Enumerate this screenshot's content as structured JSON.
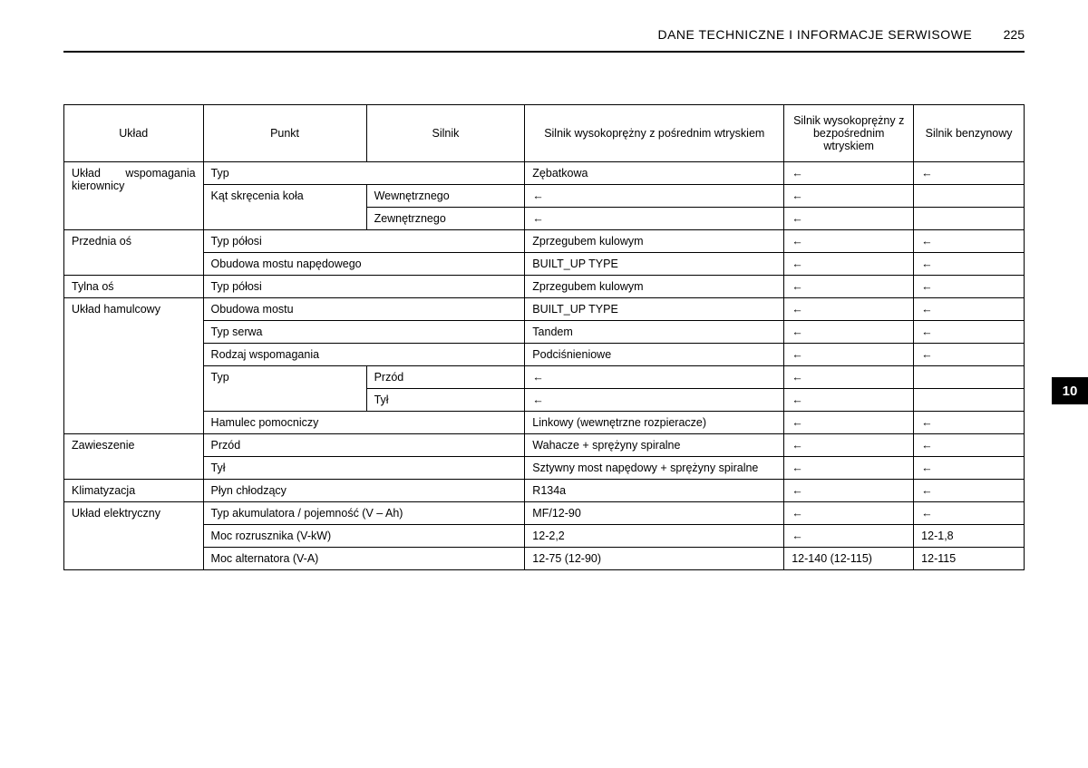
{
  "header": {
    "title": "DANE TECHNICZNE I INFORMACJE SERWISOWE",
    "page": "225"
  },
  "sideTab": "10",
  "arrow": "←",
  "columns": {
    "c1": "Układ",
    "c2": "Punkt",
    "c3": "Silnik",
    "c4": "Silnik wysokoprężny z pośrednim wtryskiem",
    "c5": "Silnik wysokoprężny z bezpośrednim wtryskiem",
    "c6": "Silnik benzynowy"
  },
  "groups": {
    "steering": {
      "label": "Układ wspomagania kierownicy",
      "rows": {
        "typ": {
          "p": "Typ",
          "v": "Zębatkowa"
        },
        "katWew": {
          "p": "Kąt skręcenia koła",
          "s": "Wewnętrznego"
        },
        "katZew": {
          "s": "Zewnętrznego"
        }
      }
    },
    "frontAxle": {
      "label": "Przednia oś",
      "rows": {
        "typPolosi": {
          "p": "Typ półosi",
          "v": "Zprzegubem kulowym"
        },
        "obudowa": {
          "p": "Obudowa mostu napędowego",
          "v": "BUILT_UP TYPE"
        }
      }
    },
    "rearAxle": {
      "label": "Tylna oś",
      "rows": {
        "typPolosi": {
          "p": "Typ półosi",
          "v": "Zprzegubem kulowym"
        }
      }
    },
    "brake": {
      "label": "Układ hamulcowy",
      "rows": {
        "obudowa": {
          "p": "Obudowa mostu",
          "v": "BUILT_UP TYPE"
        },
        "servo": {
          "p": "Typ serwa",
          "v": "Tandem"
        },
        "assist": {
          "p": "Rodzaj wspomagania",
          "v": "Podciśnieniowe"
        },
        "typFront": {
          "p": "Typ",
          "s": "Przód"
        },
        "typRear": {
          "s": "Tył"
        },
        "aux": {
          "p": "Hamulec pomocniczy",
          "v": "Linkowy (wewnętrzne rozpieracze)"
        }
      }
    },
    "susp": {
      "label": "Zawieszenie",
      "rows": {
        "front": {
          "p": "Przód",
          "v": "Wahacze + sprężyny spiralne"
        },
        "rear": {
          "p": "Tył",
          "v": "Sztywny most napędowy + sprężyny spiralne"
        }
      }
    },
    "ac": {
      "label": "Klimatyzacja",
      "rows": {
        "coolant": {
          "p": "Płyn chłodzący",
          "v": "R134a"
        }
      }
    },
    "elec": {
      "label": "Układ elektryczny",
      "rows": {
        "bat": {
          "p": "Typ akumulatora / pojemność (V – Ah)",
          "v": "MF/12-90"
        },
        "starter": {
          "p": "Moc rozrusznika (V-kW)",
          "v": "12-2,2",
          "c6": "12-1,8"
        },
        "alt": {
          "p": "Moc alternatora (V-A)",
          "v": "12-75 (12-90)",
          "c5": "12-140 (12-115)",
          "c6": "12-115"
        }
      }
    }
  }
}
